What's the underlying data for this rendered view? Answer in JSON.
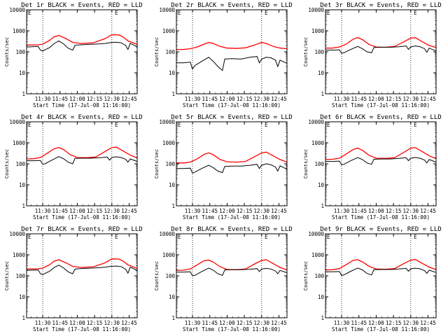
{
  "colors": {
    "events": "#000000",
    "lld": "#ff0000",
    "axes": "#000000",
    "marker": "#000000",
    "background": "#ffffff"
  },
  "shared": {
    "xlabel": "Start Time (17-Jul-08 11:16:00)",
    "ylabel": "Counts/sec",
    "x_tick_labels": [
      "11:30",
      "11:45",
      "12:00",
      "12:15",
      "12:30",
      "12:45"
    ],
    "x_tick_minutes": [
      14,
      29,
      44,
      59,
      74,
      89
    ],
    "y_tick_labels": [
      "1",
      "10",
      "100",
      "1000",
      "10000"
    ],
    "y_tick_values": [
      1,
      10,
      100,
      1000,
      10000
    ],
    "marker_label": "E",
    "marker_minute": 78
  },
  "chart_data": [
    {
      "type": "line",
      "title": "Det 1r BLACK = Events, RED = LLD",
      "xlabel": "Start Time (17-Jul-08 11:16:00)",
      "ylabel": "Counts/sec",
      "x_unit": "minutes after 11:16:00",
      "xlim": [
        0,
        96
      ],
      "ylim": [
        1,
        10000
      ],
      "yscale": "log",
      "vlines": [
        14,
        74
      ],
      "series": [
        {
          "name": "LLD",
          "color": "#ff0000",
          "x": [
            0,
            5,
            10,
            14,
            20,
            24,
            28,
            34,
            40,
            48,
            58,
            68,
            72,
            74,
            80,
            84,
            88,
            94,
            96
          ],
          "y": [
            210,
            210,
            215,
            230,
            350,
            520,
            600,
            430,
            280,
            250,
            270,
            420,
            560,
            650,
            640,
            500,
            330,
            250,
            230
          ]
        },
        {
          "name": "Events",
          "color": "#000000",
          "x": [
            0,
            5,
            10,
            12,
            14,
            20,
            24,
            28,
            32,
            36,
            40,
            42,
            44,
            50,
            58,
            64,
            68,
            72,
            74,
            78,
            82,
            86,
            88,
            90,
            94,
            96
          ],
          "y": [
            170,
            175,
            180,
            120,
            110,
            160,
            250,
            330,
            240,
            150,
            120,
            200,
            210,
            220,
            230,
            240,
            250,
            270,
            280,
            285,
            270,
            200,
            130,
            250,
            200,
            160
          ]
        }
      ]
    },
    {
      "type": "line",
      "title": "Det 2r BLACK = Events, RED = LLD",
      "xlabel": "Start Time (17-Jul-08 11:16:00)",
      "ylabel": "Counts/sec",
      "x_unit": "minutes after 11:16:00",
      "xlim": [
        0,
        96
      ],
      "ylim": [
        1,
        10000
      ],
      "yscale": "log",
      "vlines": [
        14,
        74
      ],
      "series": [
        {
          "name": "LLD",
          "color": "#ff0000",
          "x": [
            0,
            6,
            12,
            18,
            24,
            28,
            32,
            38,
            44,
            52,
            60,
            68,
            74,
            78,
            84,
            90,
            96
          ],
          "y": [
            130,
            130,
            140,
            170,
            230,
            280,
            250,
            180,
            150,
            145,
            155,
            210,
            280,
            250,
            180,
            150,
            140
          ]
        },
        {
          "name": "Events",
          "color": "#000000",
          "x": [
            0,
            6,
            12,
            14,
            16,
            22,
            28,
            32,
            36,
            40,
            42,
            48,
            56,
            64,
            70,
            72,
            74,
            78,
            82,
            86,
            88,
            90,
            96
          ],
          "y": [
            30,
            30,
            32,
            15,
            22,
            35,
            55,
            35,
            20,
            13,
            45,
            47,
            45,
            55,
            60,
            30,
            45,
            55,
            52,
            40,
            20,
            40,
            28
          ]
        }
      ]
    },
    {
      "type": "line",
      "title": "Det 3r BLACK = Events, RED = LLD",
      "xlabel": "Start Time (17-Jul-08 11:16:00)",
      "ylabel": "Counts/sec",
      "x_unit": "minutes after 11:16:00",
      "xlim": [
        0,
        96
      ],
      "ylim": [
        1,
        10000
      ],
      "yscale": "log",
      "vlines": [
        14,
        74
      ],
      "series": [
        {
          "name": "LLD",
          "color": "#ff0000",
          "x": [
            0,
            6,
            12,
            18,
            24,
            28,
            32,
            38,
            44,
            52,
            60,
            68,
            74,
            78,
            84,
            90,
            96
          ],
          "y": [
            150,
            150,
            170,
            230,
            400,
            480,
            380,
            220,
            170,
            165,
            180,
            300,
            450,
            470,
            300,
            200,
            160
          ]
        },
        {
          "name": "Events",
          "color": "#000000",
          "x": [
            0,
            6,
            12,
            14,
            16,
            22,
            28,
            32,
            36,
            40,
            42,
            48,
            56,
            64,
            70,
            72,
            74,
            78,
            82,
            86,
            88,
            90,
            96
          ],
          "y": [
            120,
            120,
            125,
            85,
            90,
            130,
            180,
            140,
            100,
            90,
            160,
            165,
            165,
            175,
            190,
            130,
            170,
            190,
            175,
            140,
            95,
            150,
            110
          ]
        }
      ]
    },
    {
      "type": "line",
      "title": "Det 4r BLACK = Events, RED = LLD",
      "xlabel": "Start Time (17-Jul-08 11:16:00)",
      "ylabel": "Counts/sec",
      "x_unit": "minutes after 11:16:00",
      "xlim": [
        0,
        96
      ],
      "ylim": [
        1,
        10000
      ],
      "yscale": "log",
      "vlines": [
        14,
        74
      ],
      "series": [
        {
          "name": "LLD",
          "color": "#ff0000",
          "x": [
            0,
            6,
            12,
            18,
            24,
            28,
            32,
            38,
            44,
            52,
            60,
            68,
            74,
            78,
            84,
            90,
            96
          ],
          "y": [
            170,
            175,
            200,
            320,
            520,
            600,
            480,
            270,
            200,
            195,
            210,
            380,
            600,
            620,
            400,
            260,
            190
          ]
        },
        {
          "name": "Events",
          "color": "#000000",
          "x": [
            0,
            6,
            12,
            14,
            16,
            22,
            28,
            32,
            36,
            40,
            42,
            48,
            56,
            64,
            70,
            72,
            74,
            78,
            82,
            86,
            88,
            90,
            96
          ],
          "y": [
            140,
            140,
            145,
            95,
            100,
            150,
            220,
            175,
            120,
            100,
            180,
            185,
            185,
            195,
            210,
            150,
            200,
            215,
            200,
            165,
            120,
            170,
            130
          ]
        }
      ]
    },
    {
      "type": "line",
      "title": "Det 5r BLACK = Events, RED = LLD",
      "xlabel": "Start Time (17-Jul-08 11:16:00)",
      "ylabel": "Counts/sec",
      "x_unit": "minutes after 11:16:00",
      "xlim": [
        0,
        96
      ],
      "ylim": [
        1,
        10000
      ],
      "yscale": "log",
      "vlines": [
        14,
        74
      ],
      "series": [
        {
          "name": "LLD",
          "color": "#ff0000",
          "x": [
            0,
            6,
            12,
            18,
            24,
            28,
            32,
            38,
            44,
            52,
            60,
            68,
            74,
            78,
            84,
            90,
            96
          ],
          "y": [
            110,
            110,
            120,
            170,
            280,
            330,
            270,
            160,
            125,
            120,
            130,
            220,
            330,
            360,
            240,
            160,
            120
          ]
        },
        {
          "name": "Events",
          "color": "#000000",
          "x": [
            0,
            6,
            12,
            14,
            16,
            22,
            28,
            32,
            36,
            40,
            42,
            48,
            56,
            64,
            70,
            72,
            74,
            78,
            82,
            86,
            88,
            90,
            96
          ],
          "y": [
            60,
            60,
            62,
            36,
            40,
            60,
            85,
            65,
            45,
            38,
            75,
            78,
            78,
            85,
            95,
            60,
            85,
            100,
            90,
            70,
            45,
            80,
            55
          ]
        }
      ]
    },
    {
      "type": "line",
      "title": "Det 6r BLACK = Events, RED = LLD",
      "xlabel": "Start Time (17-Jul-08 11:16:00)",
      "ylabel": "Counts/sec",
      "x_unit": "minutes after 11:16:00",
      "xlim": [
        0,
        96
      ],
      "ylim": [
        1,
        10000
      ],
      "yscale": "log",
      "vlines": [
        14,
        74
      ],
      "series": [
        {
          "name": "LLD",
          "color": "#ff0000",
          "x": [
            0,
            6,
            12,
            18,
            24,
            28,
            32,
            38,
            44,
            52,
            60,
            68,
            74,
            78,
            84,
            90,
            96
          ],
          "y": [
            160,
            165,
            185,
            290,
            480,
            560,
            440,
            250,
            185,
            180,
            195,
            350,
            560,
            590,
            380,
            240,
            175
          ]
        },
        {
          "name": "Events",
          "color": "#000000",
          "x": [
            0,
            6,
            12,
            14,
            16,
            22,
            28,
            32,
            36,
            40,
            42,
            48,
            56,
            64,
            70,
            72,
            74,
            78,
            82,
            86,
            88,
            90,
            96
          ],
          "y": [
            130,
            130,
            135,
            90,
            95,
            140,
            200,
            160,
            110,
            95,
            165,
            170,
            170,
            180,
            195,
            140,
            185,
            200,
            185,
            150,
            110,
            160,
            120
          ]
        }
      ]
    },
    {
      "type": "line",
      "title": "Det 7r BLACK = Events, RED = LLD",
      "xlabel": "Start Time (17-Jul-08 11:16:00)",
      "ylabel": "Counts/sec",
      "x_unit": "minutes after 11:16:00",
      "xlim": [
        0,
        96
      ],
      "ylim": [
        1,
        10000
      ],
      "yscale": "log",
      "vlines": [
        14,
        74
      ],
      "series": [
        {
          "name": "LLD",
          "color": "#ff0000",
          "x": [
            0,
            5,
            10,
            14,
            20,
            24,
            28,
            34,
            40,
            48,
            58,
            68,
            72,
            74,
            80,
            84,
            88,
            94,
            96
          ],
          "y": [
            210,
            210,
            215,
            230,
            340,
            500,
            580,
            420,
            280,
            250,
            270,
            410,
            550,
            640,
            630,
            490,
            330,
            250,
            230
          ]
        },
        {
          "name": "Events",
          "color": "#000000",
          "x": [
            0,
            5,
            10,
            12,
            14,
            20,
            24,
            28,
            32,
            36,
            40,
            42,
            44,
            50,
            58,
            64,
            68,
            72,
            74,
            78,
            82,
            86,
            88,
            90,
            94,
            96
          ],
          "y": [
            180,
            185,
            190,
            125,
            115,
            165,
            250,
            320,
            240,
            155,
            125,
            205,
            215,
            225,
            235,
            245,
            255,
            275,
            285,
            290,
            275,
            205,
            135,
            255,
            205,
            165
          ]
        }
      ]
    },
    {
      "type": "line",
      "title": "Det 8r BLACK = Events, RED = LLD",
      "xlabel": "Start Time (17-Jul-08 11:16:00)",
      "ylabel": "Counts/sec",
      "x_unit": "minutes after 11:16:00",
      "xlim": [
        0,
        96
      ],
      "ylim": [
        1,
        10000
      ],
      "yscale": "log",
      "vlines": [
        14,
        74
      ],
      "series": [
        {
          "name": "LLD",
          "color": "#ff0000",
          "x": [
            0,
            6,
            12,
            18,
            24,
            28,
            32,
            38,
            44,
            52,
            60,
            68,
            74,
            78,
            84,
            90,
            96
          ],
          "y": [
            180,
            185,
            210,
            330,
            520,
            560,
            450,
            270,
            200,
            195,
            210,
            370,
            540,
            580,
            380,
            250,
            190
          ]
        },
        {
          "name": "Events",
          "color": "#000000",
          "x": [
            0,
            6,
            12,
            14,
            16,
            22,
            28,
            32,
            36,
            40,
            42,
            48,
            56,
            64,
            70,
            72,
            74,
            78,
            82,
            86,
            88,
            90,
            96
          ],
          "y": [
            150,
            150,
            155,
            100,
            105,
            160,
            230,
            185,
            125,
            105,
            190,
            195,
            195,
            205,
            220,
            160,
            210,
            225,
            210,
            170,
            125,
            180,
            140
          ]
        }
      ]
    },
    {
      "type": "line",
      "title": "Det 9r BLACK = Events, RED = LLD",
      "xlabel": "Start Time (17-Jul-08 11:16:00)",
      "ylabel": "Counts/sec",
      "x_unit": "minutes after 11:16:00",
      "xlim": [
        0,
        96
      ],
      "ylim": [
        1,
        10000
      ],
      "yscale": "log",
      "vlines": [
        14,
        74
      ],
      "series": [
        {
          "name": "LLD",
          "color": "#ff0000",
          "x": [
            0,
            6,
            12,
            18,
            24,
            28,
            32,
            38,
            44,
            52,
            60,
            68,
            74,
            78,
            84,
            90,
            96
          ],
          "y": [
            190,
            195,
            220,
            340,
            540,
            580,
            460,
            280,
            210,
            205,
            220,
            380,
            560,
            600,
            390,
            260,
            200
          ]
        },
        {
          "name": "Events",
          "color": "#000000",
          "x": [
            0,
            6,
            12,
            14,
            16,
            22,
            28,
            32,
            36,
            40,
            42,
            48,
            56,
            64,
            70,
            72,
            74,
            78,
            82,
            86,
            88,
            90,
            96
          ],
          "y": [
            155,
            155,
            160,
            105,
            110,
            165,
            235,
            190,
            130,
            110,
            195,
            200,
            200,
            210,
            225,
            165,
            215,
            230,
            215,
            175,
            130,
            185,
            145
          ]
        }
      ]
    }
  ]
}
